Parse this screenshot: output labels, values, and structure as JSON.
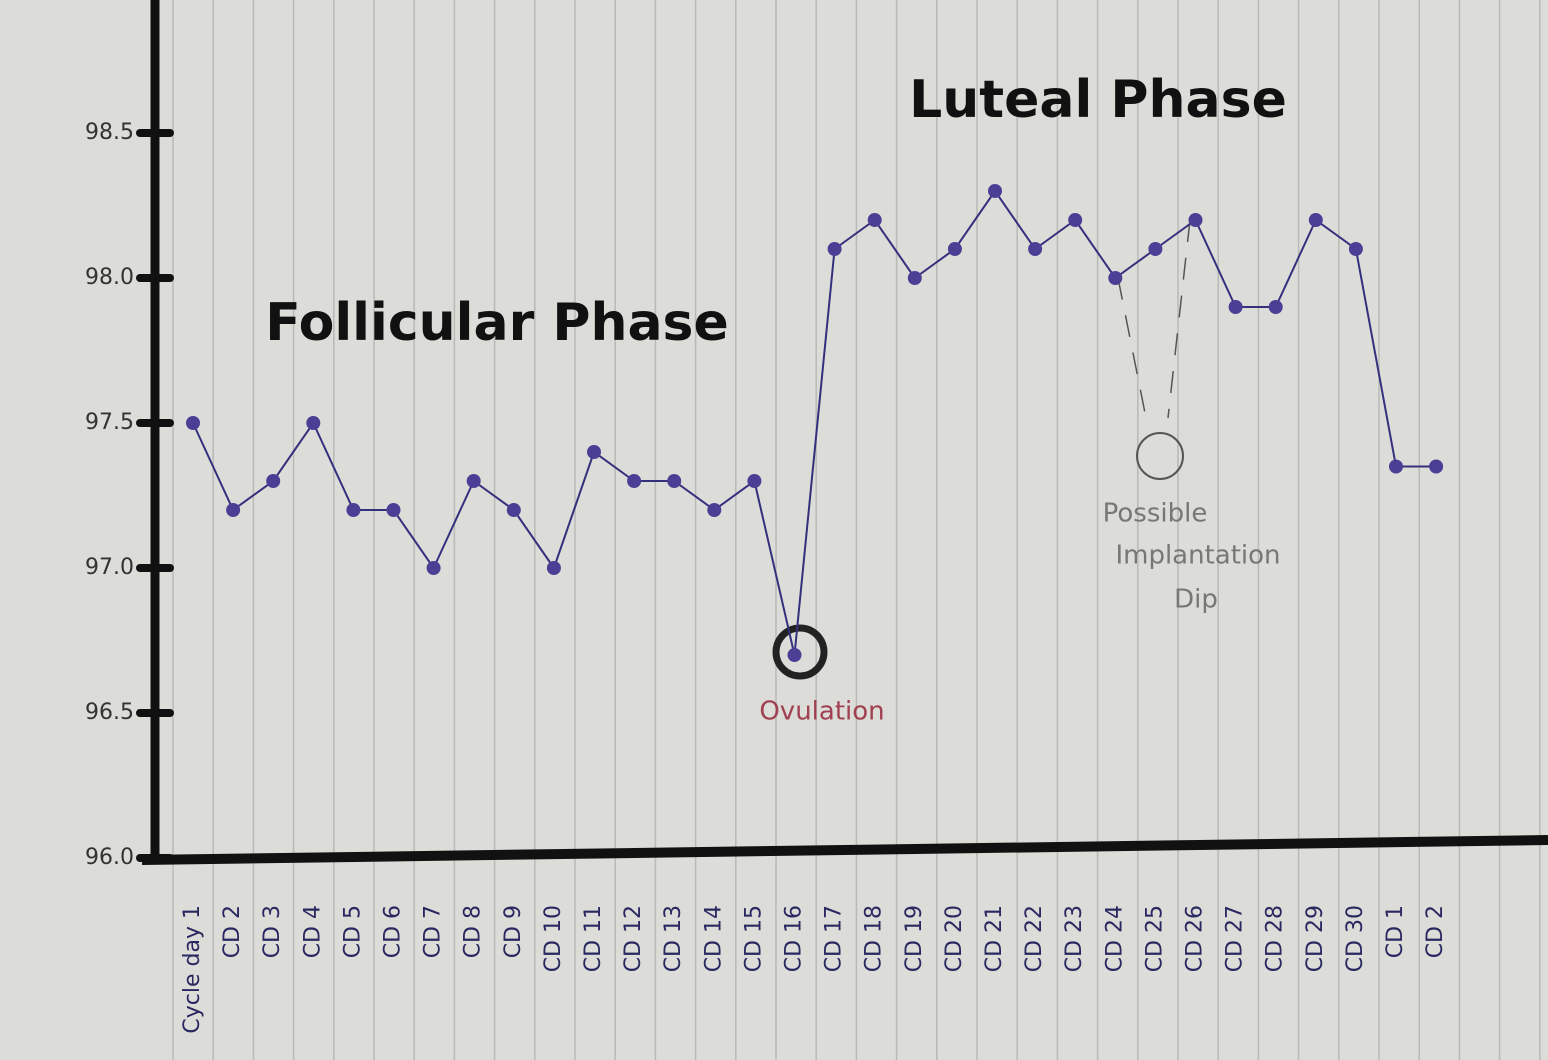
{
  "chart_data": {
    "type": "line",
    "follicular_label": "Follicular Phase",
    "luteal_label": "Luteal Phase",
    "ovulation_label": "Ovulation",
    "implantation_label": [
      "Possible",
      "Implantation",
      "Dip"
    ],
    "categories": [
      "Cycle day 1",
      "CD 2",
      "CD 3",
      "CD 4",
      "CD 5",
      "CD 6",
      "CD 7",
      "CD 8",
      "CD 9",
      "CD 10",
      "CD 11",
      "CD 12",
      "CD 13",
      "CD 14",
      "CD 15",
      "CD 16",
      "CD 17",
      "CD 18",
      "CD 19",
      "CD 20",
      "CD 21",
      "CD 22",
      "CD 23",
      "CD 24",
      "CD 25",
      "CD 26",
      "CD 27",
      "CD 28",
      "CD 29",
      "CD 30",
      "CD 1",
      "CD 2"
    ],
    "values": [
      97.5,
      97.2,
      97.3,
      97.5,
      97.2,
      97.2,
      97.0,
      97.3,
      97.2,
      97.0,
      97.4,
      97.3,
      97.3,
      97.2,
      97.3,
      96.7,
      98.1,
      98.2,
      98.0,
      98.1,
      98.3,
      98.1,
      98.2,
      98.0,
      98.1,
      98.2,
      97.9,
      97.9,
      98.2,
      98.1,
      97.35,
      97.35
    ],
    "color": "#35307e",
    "point_color": "#4b3f95",
    "ylim": [
      96,
      99
    ],
    "yticks": [
      {
        "value": 96,
        "label": "96.0"
      },
      96.5,
      {
        "value": 97,
        "label": "97.0"
      },
      97.5,
      {
        "value": 98,
        "label": "98.0"
      },
      98.5
    ]
  }
}
